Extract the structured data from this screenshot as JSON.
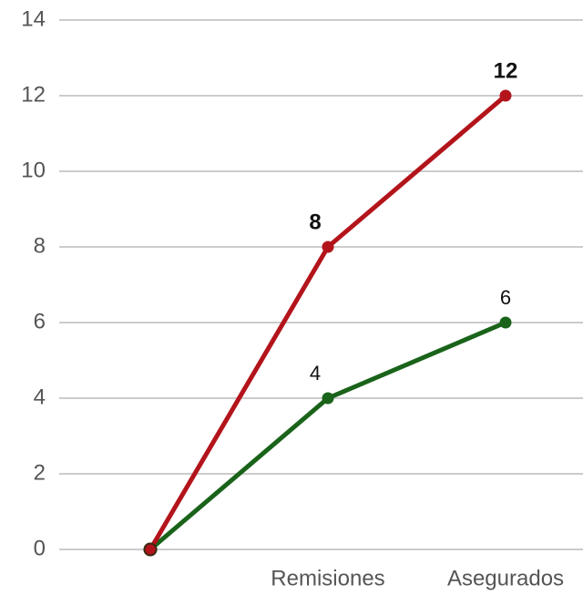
{
  "chart_data": {
    "type": "line",
    "categories": [
      null,
      "Remisiones",
      "Asegurados"
    ],
    "series": [
      {
        "color": "#1a631a",
        "values": [
          0,
          4,
          6
        ],
        "value_labels": [
          null,
          "4",
          "6"
        ],
        "bold": false
      },
      {
        "color": "#b3141b",
        "values": [
          0,
          8,
          12
        ],
        "value_labels": [
          null,
          "8",
          "12"
        ],
        "bold": true
      }
    ],
    "ylim": [
      0,
      14
    ],
    "yticks": [
      0,
      2,
      4,
      6,
      8,
      10,
      12,
      14
    ],
    "grid": true
  }
}
